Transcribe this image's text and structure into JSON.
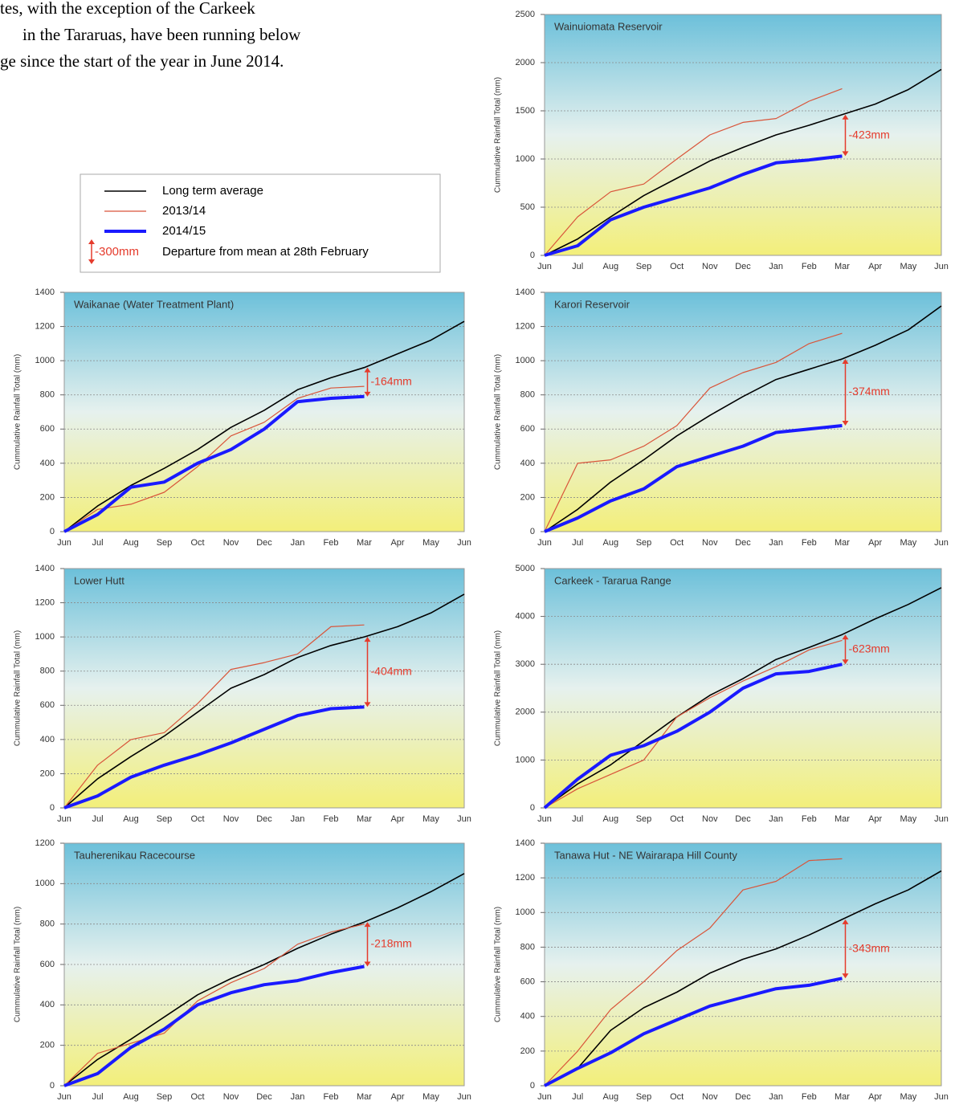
{
  "text": {
    "lines": [
      "tes, with the exception of the Carkeek",
      "in the Tararuas, have been running below",
      "ge since the start of the year in June 2014."
    ]
  },
  "legend": {
    "example": "-300mm",
    "description": "Departure from mean at 28th February"
  },
  "chart_data": [
    {
      "type": "line",
      "title": "Wainuiomata Reservoir",
      "y_label": "Cummulative Rainfall Total (mm)",
      "categories": [
        "Jun",
        "Jul",
        "Aug",
        "Sep",
        "Oct",
        "Nov",
        "Dec",
        "Jan",
        "Feb",
        "Mar",
        "Apr",
        "May",
        "Jun"
      ],
      "ylim": [
        0,
        2500
      ],
      "yticks": [
        0,
        500,
        1000,
        1500,
        2000,
        2500
      ],
      "grid": true,
      "annotation": "-423mm",
      "series": [
        {
          "name": "Long term average",
          "color": "#000000",
          "values": [
            0,
            170,
            400,
            620,
            800,
            980,
            1120,
            1250,
            1350,
            1460,
            1570,
            1720,
            1930
          ]
        },
        {
          "name": "2013/14",
          "color": "#d9553a",
          "values": [
            0,
            400,
            660,
            740,
            1000,
            1250,
            1380,
            1420,
            1600,
            1730,
            null,
            null,
            null
          ]
        },
        {
          "name": "2014/15",
          "color": "#1a1aff",
          "values": [
            0,
            100,
            370,
            500,
            600,
            700,
            840,
            960,
            990,
            1030,
            null,
            null,
            null
          ]
        }
      ]
    },
    {
      "type": "line",
      "title": "Waikanae (Water Treatment Plant)",
      "y_label": "Cummulative Rainfall Total (mm)",
      "categories": [
        "Jun",
        "Jul",
        "Aug",
        "Sep",
        "Oct",
        "Nov",
        "Dec",
        "Jan",
        "Feb",
        "Mar",
        "Apr",
        "May",
        "Jun"
      ],
      "ylim": [
        0,
        1400
      ],
      "yticks": [
        0,
        200,
        400,
        600,
        800,
        1000,
        1200,
        1400
      ],
      "grid": true,
      "annotation": "-164mm",
      "series": [
        {
          "name": "Long term average",
          "color": "#000000",
          "values": [
            0,
            150,
            270,
            370,
            480,
            610,
            710,
            830,
            900,
            960,
            1040,
            1120,
            1230
          ]
        },
        {
          "name": "2013/14",
          "color": "#d9553a",
          "values": [
            0,
            130,
            160,
            230,
            380,
            560,
            640,
            780,
            840,
            850,
            null,
            null,
            null
          ]
        },
        {
          "name": "2014/15",
          "color": "#1a1aff",
          "values": [
            0,
            100,
            260,
            290,
            400,
            480,
            600,
            760,
            780,
            790,
            null,
            null,
            null
          ]
        }
      ]
    },
    {
      "type": "line",
      "title": "Karori Reservoir",
      "y_label": "Cummulative Rainfall Total (mm)",
      "categories": [
        "Jun",
        "Jul",
        "Aug",
        "Sep",
        "Oct",
        "Nov",
        "Dec",
        "Jan",
        "Feb",
        "Mar",
        "Apr",
        "May",
        "Jun"
      ],
      "ylim": [
        0,
        1400
      ],
      "yticks": [
        0,
        200,
        400,
        600,
        800,
        1000,
        1200,
        1400
      ],
      "grid": true,
      "annotation": "-374mm",
      "series": [
        {
          "name": "Long term average",
          "color": "#000000",
          "values": [
            0,
            130,
            290,
            420,
            560,
            680,
            790,
            890,
            950,
            1010,
            1090,
            1180,
            1320
          ]
        },
        {
          "name": "2013/14",
          "color": "#d9553a",
          "values": [
            0,
            400,
            420,
            500,
            620,
            840,
            930,
            990,
            1100,
            1160,
            null,
            null,
            null
          ]
        },
        {
          "name": "2014/15",
          "color": "#1a1aff",
          "values": [
            0,
            80,
            180,
            250,
            380,
            440,
            500,
            580,
            600,
            620,
            null,
            null,
            null
          ]
        }
      ]
    },
    {
      "type": "line",
      "title": "Lower Hutt",
      "y_label": "Cummulative Rainfall Total (mm)",
      "categories": [
        "Jun",
        "Jul",
        "Aug",
        "Sep",
        "Oct",
        "Nov",
        "Dec",
        "Jan",
        "Feb",
        "Mar",
        "Apr",
        "May",
        "Jun"
      ],
      "ylim": [
        0,
        1400
      ],
      "yticks": [
        0,
        200,
        400,
        600,
        800,
        1000,
        1200,
        1400
      ],
      "grid": true,
      "annotation": "-404mm",
      "series": [
        {
          "name": "Long term average",
          "color": "#000000",
          "values": [
            0,
            170,
            300,
            420,
            560,
            700,
            780,
            880,
            950,
            1000,
            1060,
            1140,
            1250
          ]
        },
        {
          "name": "2013/14",
          "color": "#d9553a",
          "values": [
            0,
            250,
            400,
            440,
            610,
            810,
            850,
            900,
            1060,
            1070,
            null,
            null,
            null
          ]
        },
        {
          "name": "2014/15",
          "color": "#1a1aff",
          "values": [
            0,
            70,
            180,
            250,
            310,
            380,
            460,
            540,
            580,
            590,
            null,
            null,
            null
          ]
        }
      ]
    },
    {
      "type": "line",
      "title": "Carkeek - Tararua Range",
      "y_label": "Cummulative Rainfall Total (mm)",
      "categories": [
        "Jun",
        "Jul",
        "Aug",
        "Sep",
        "Oct",
        "Nov",
        "Dec",
        "Jan",
        "Feb",
        "Mar",
        "Apr",
        "May",
        "Jun"
      ],
      "ylim": [
        0,
        5000
      ],
      "yticks": [
        0,
        1000,
        2000,
        3000,
        4000,
        5000
      ],
      "grid": true,
      "annotation": "-623mm",
      "series": [
        {
          "name": "Long term average",
          "color": "#000000",
          "values": [
            0,
            500,
            900,
            1400,
            1900,
            2350,
            2700,
            3100,
            3350,
            3620,
            3950,
            4250,
            4600
          ]
        },
        {
          "name": "2013/14",
          "color": "#d9553a",
          "values": [
            0,
            400,
            700,
            1000,
            1900,
            2300,
            2650,
            2950,
            3300,
            3500,
            null,
            null,
            null
          ]
        },
        {
          "name": "2014/15",
          "color": "#1a1aff",
          "values": [
            0,
            600,
            1100,
            1300,
            1600,
            2000,
            2500,
            2800,
            2850,
            3000,
            null,
            null,
            null
          ]
        }
      ]
    },
    {
      "type": "line",
      "title": "Tauherenikau Racecourse",
      "y_label": "Cummulative Rainfall Total (mm)",
      "categories": [
        "Jun",
        "Jul",
        "Aug",
        "Sep",
        "Oct",
        "Nov",
        "Dec",
        "Jan",
        "Feb",
        "Mar",
        "Apr",
        "May",
        "Jun"
      ],
      "ylim": [
        0,
        1200
      ],
      "yticks": [
        0,
        200,
        400,
        600,
        800,
        1000,
        1200
      ],
      "grid": true,
      "annotation": "-218mm",
      "series": [
        {
          "name": "Long term average",
          "color": "#000000",
          "values": [
            0,
            130,
            230,
            340,
            450,
            530,
            600,
            680,
            750,
            810,
            880,
            960,
            1050
          ]
        },
        {
          "name": "2013/14",
          "color": "#d9553a",
          "values": [
            0,
            160,
            210,
            260,
            420,
            510,
            580,
            700,
            760,
            800,
            null,
            null,
            null
          ]
        },
        {
          "name": "2014/15",
          "color": "#1a1aff",
          "values": [
            0,
            60,
            190,
            280,
            400,
            460,
            500,
            520,
            560,
            590,
            null,
            null,
            null
          ]
        }
      ]
    },
    {
      "type": "line",
      "title": "Tanawa Hut - NE Wairarapa Hill County",
      "y_label": "Cummulative Rainfall Total (mm)",
      "categories": [
        "Jun",
        "Jul",
        "Aug",
        "Sep",
        "Oct",
        "Nov",
        "Dec",
        "Jan",
        "Feb",
        "Mar",
        "Apr",
        "May",
        "Jun"
      ],
      "ylim": [
        0,
        1400
      ],
      "yticks": [
        0,
        200,
        400,
        600,
        800,
        1000,
        1200,
        1400
      ],
      "grid": true,
      "annotation": "-343mm",
      "series": [
        {
          "name": "Long term average",
          "color": "#000000",
          "values": [
            0,
            100,
            320,
            450,
            540,
            650,
            730,
            790,
            870,
            960,
            1050,
            1130,
            1240
          ]
        },
        {
          "name": "2013/14",
          "color": "#d9553a",
          "values": [
            0,
            200,
            440,
            600,
            780,
            910,
            1130,
            1180,
            1300,
            1310,
            null,
            null,
            null
          ]
        },
        {
          "name": "2014/15",
          "color": "#1a1aff",
          "values": [
            0,
            100,
            190,
            300,
            380,
            460,
            510,
            560,
            580,
            620,
            null,
            null,
            null
          ]
        }
      ]
    }
  ]
}
